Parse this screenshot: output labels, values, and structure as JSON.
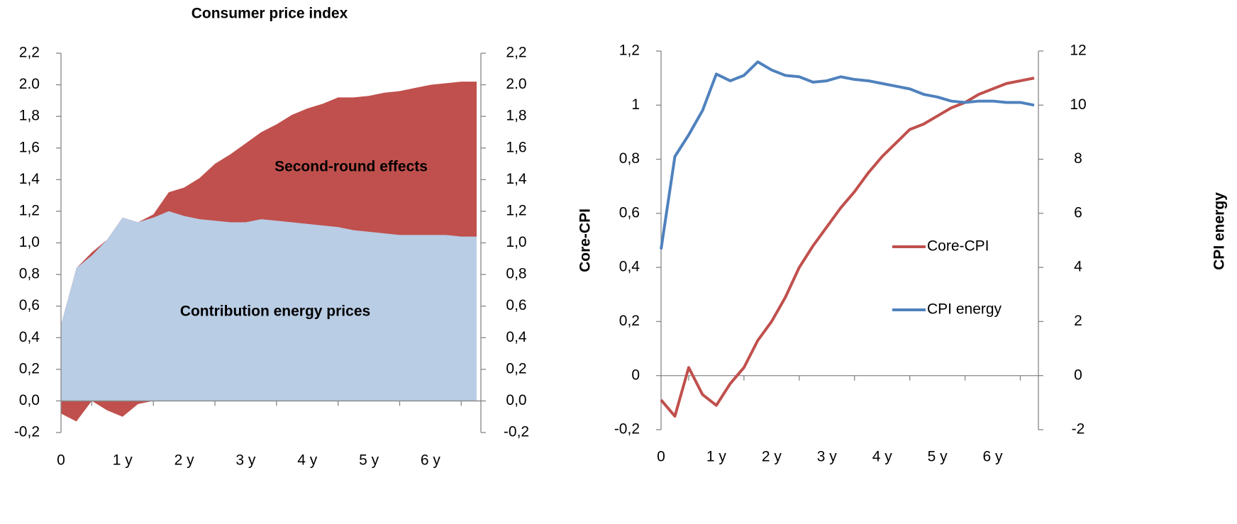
{
  "chart_data": [
    {
      "type": "area",
      "stacked": true,
      "title": "Consumer price index",
      "categories": [
        "0",
        null,
        null,
        null,
        "1 y",
        null,
        null,
        null,
        "2 y",
        null,
        null,
        null,
        "3 y",
        null,
        null,
        null,
        "4 y",
        null,
        null,
        null,
        "5 y",
        null,
        null,
        null,
        "6 y",
        null,
        null,
        null
      ],
      "series": [
        {
          "name": "Contribution energy prices",
          "color": "#b9cde5",
          "values": [
            0.48,
            0.84,
            0.92,
            1.02,
            1.16,
            1.13,
            1.16,
            1.2,
            1.17,
            1.15,
            1.14,
            1.13,
            1.13,
            1.15,
            1.14,
            1.13,
            1.12,
            1.11,
            1.1,
            1.08,
            1.07,
            1.06,
            1.05,
            1.05,
            1.05,
            1.05,
            1.04,
            1.04
          ]
        },
        {
          "name": "Second-round effects",
          "color": "#c0504d",
          "values": [
            -0.08,
            -0.13,
            0.02,
            -0.06,
            -0.1,
            -0.02,
            0.02,
            0.12,
            0.18,
            0.26,
            0.36,
            0.43,
            0.5,
            0.55,
            0.61,
            0.68,
            0.73,
            0.77,
            0.82,
            0.84,
            0.86,
            0.89,
            0.91,
            0.93,
            0.95,
            0.96,
            0.98,
            0.98
          ]
        }
      ],
      "annotations": [
        "Second-round effects",
        "Contribution energy prices"
      ],
      "ylim": [
        -0.2,
        2.2
      ],
      "yticks": [
        {
          "value": -0.2,
          "label": "-0,2"
        },
        {
          "value": 0,
          "label": "0,0"
        },
        {
          "value": 0.2,
          "label": "0,2"
        },
        {
          "value": 0.4,
          "label": "0,4"
        },
        {
          "value": 0.6,
          "label": "0,6"
        },
        {
          "value": 0.8,
          "label": "0,8"
        },
        {
          "value": 1,
          "label": "1,0"
        },
        {
          "value": 1.2,
          "label": "1,2"
        },
        {
          "value": 1.4,
          "label": "1,4"
        },
        {
          "value": 1.6,
          "label": "1,6"
        },
        {
          "value": 1.8,
          "label": "1,8"
        },
        {
          "value": 2,
          "label": "2.0"
        },
        {
          "value": 2.2,
          "label": "2,2"
        }
      ],
      "y2lim": [
        -0.2,
        2.2
      ],
      "y2ticks": [
        {
          "value": -0.2,
          "label": "-0,2"
        },
        {
          "value": 0,
          "label": "0,0"
        },
        {
          "value": 0.2,
          "label": "0,2"
        },
        {
          "value": 0.4,
          "label": "0,4"
        },
        {
          "value": 0.6,
          "label": "0,6"
        },
        {
          "value": 0.8,
          "label": "0,8"
        },
        {
          "value": 1,
          "label": "1,0"
        },
        {
          "value": 1.2,
          "label": "1,2"
        },
        {
          "value": 1.4,
          "label": "1,4"
        },
        {
          "value": 1.6,
          "label": "1,6"
        },
        {
          "value": 1.8,
          "label": "1,8"
        },
        {
          "value": 2,
          "label": "2.0"
        },
        {
          "value": 2.2,
          "label": "2,2"
        }
      ]
    },
    {
      "type": "line",
      "y_label": "Core-CPI",
      "y2_label": "CPI energy",
      "categories": [
        "0",
        null,
        null,
        null,
        "1 y",
        null,
        null,
        null,
        "2 y",
        null,
        null,
        null,
        "3 y",
        null,
        null,
        null,
        "4 y",
        null,
        null,
        null,
        "5 y",
        null,
        null,
        null,
        "6 y",
        null,
        null,
        null
      ],
      "series": [
        {
          "name": "Core-CPI",
          "color": "#c0504d",
          "values": [
            -0.09,
            -0.15,
            0.03,
            -0.07,
            -0.11,
            -0.03,
            0.03,
            0.13,
            0.2,
            0.29,
            0.4,
            0.48,
            0.55,
            0.62,
            0.68,
            0.75,
            0.81,
            0.86,
            0.91,
            0.93,
            0.96,
            0.99,
            1.01,
            1.04,
            1.06,
            1.08,
            1.09,
            1.1
          ]
        },
        {
          "name": "CPI energy",
          "color": "#4f81bd",
          "axis": "y2",
          "values": [
            4.67,
            8.1,
            8.9,
            9.8,
            11.15,
            10.9,
            11.1,
            11.6,
            11.3,
            11.1,
            11.05,
            10.85,
            10.9,
            11.05,
            10.95,
            10.9,
            10.8,
            10.7,
            10.6,
            10.4,
            10.3,
            10.15,
            10.1,
            10.15,
            10.15,
            10.1,
            10.1,
            10.0
          ]
        }
      ],
      "ylim": [
        -0.2,
        1.2
      ],
      "yticks": [
        {
          "value": -0.2,
          "label": "-0,2"
        },
        0,
        {
          "value": 0.2,
          "label": "0,2"
        },
        {
          "value": 0.4,
          "label": "0,4"
        },
        {
          "value": 0.6,
          "label": "0,6"
        },
        {
          "value": 0.8,
          "label": "0,8"
        },
        1,
        {
          "value": 1.2,
          "label": "1,2"
        }
      ],
      "y2lim": [
        -2,
        12
      ],
      "y2ticks": [
        -2,
        0,
        2,
        4,
        6,
        8,
        10,
        12
      ]
    }
  ]
}
